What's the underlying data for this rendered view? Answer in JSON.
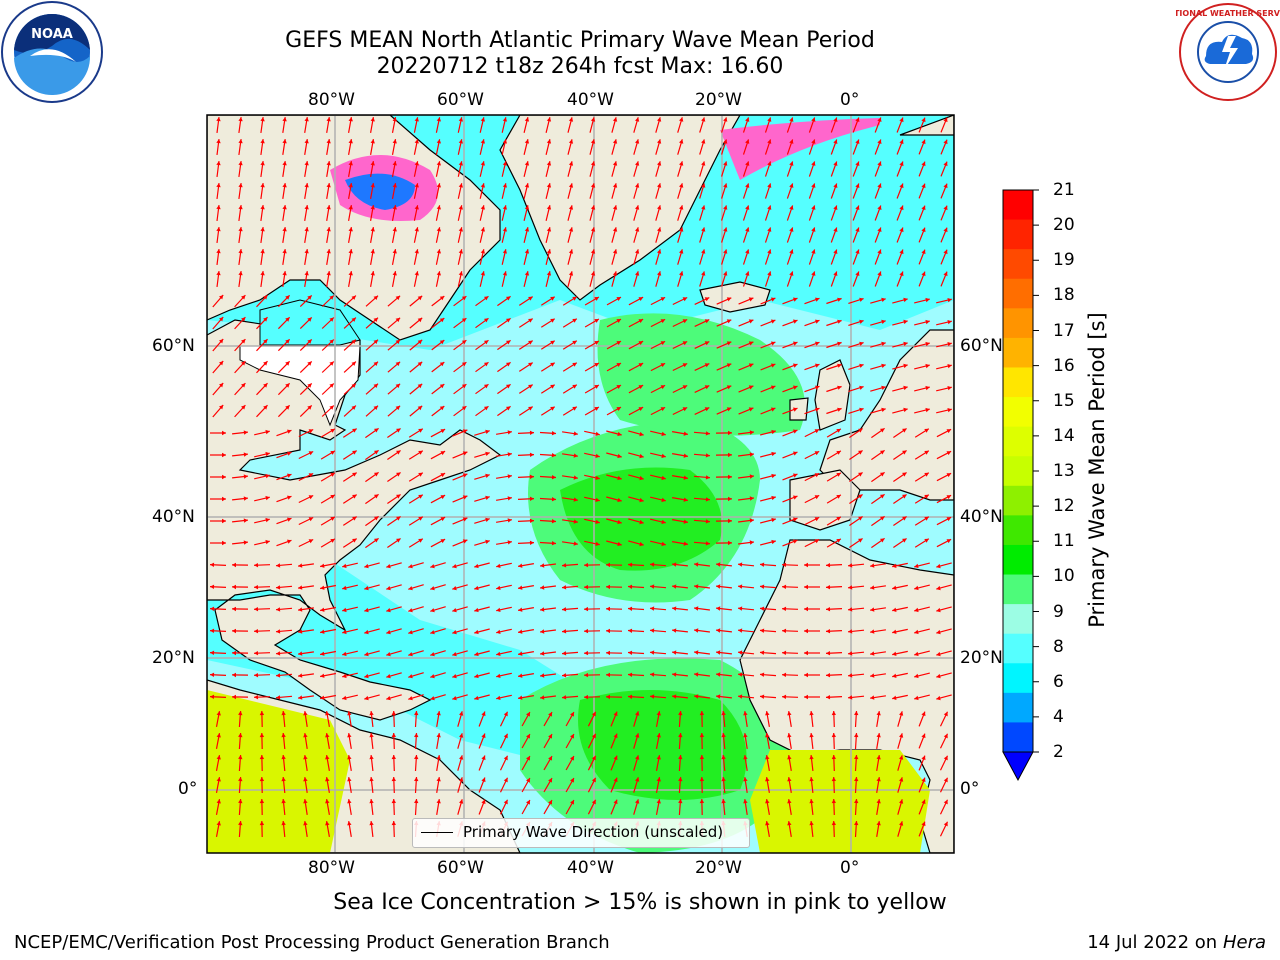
{
  "header": {
    "title_line1": "GEFS MEAN North Atlantic Primary Wave Mean Period",
    "title_line2": "20220712 t18z 264h fcst   Max: 16.60"
  },
  "logos": {
    "left": {
      "name": "NOAA",
      "ring_text": "NATIONAL OCEANIC AND ATMOSPHERIC ADMINISTRATION · U.S. DEPARTMENT OF COMMERCE"
    },
    "right": {
      "name": "NATIONAL WEATHER SERVICE"
    }
  },
  "axes": {
    "top_ticks": [
      "80°W",
      "60°W",
      "40°W",
      "20°W",
      "0°"
    ],
    "bottom_ticks": [
      "80°W",
      "60°W",
      "40°W",
      "20°W",
      "0°"
    ],
    "left_ticks": [
      "60°N",
      "40°N",
      "20°N",
      "0°"
    ],
    "right_ticks": [
      "60°N",
      "40°N",
      "20°N",
      "0°"
    ]
  },
  "legend": {
    "label": "Primary Wave Direction (unscaled)"
  },
  "colorbar": {
    "title": "Primary Wave Mean Period [s]",
    "ticks": [
      "21",
      "20",
      "19",
      "18",
      "17",
      "16",
      "15",
      "14",
      "13",
      "12",
      "11",
      "10",
      "9",
      "8",
      "6",
      "4",
      "2"
    ],
    "colors": [
      "#ff0000",
      "#ff2400",
      "#ff4a00",
      "#ff6e00",
      "#ff9400",
      "#ffb300",
      "#ffe600",
      "#f2ff00",
      "#ddff00",
      "#c7ff00",
      "#8ef000",
      "#3fe800",
      "#00ec00",
      "#4dfb7a",
      "#9cfde4",
      "#55ffff",
      "#00f5ff",
      "#00a8ff",
      "#0048ff"
    ],
    "extend_color": "#0000ff"
  },
  "map_colors": {
    "land": "#efecdc",
    "ocean_base": "#9ffcff",
    "ocean_cyan": "#55ffff",
    "ocean_green": "#4dfb7a",
    "ocean_green_dark": "#22ee22",
    "tropics_yellow": "#d9f600",
    "ice_pink": "#ff66cc",
    "ice_blue": "#1e78ff",
    "arrow": "#ff0000",
    "grid": "#b0b0b0"
  },
  "caption": "Sea Ice Concentration > 15% is shown in pink to yellow",
  "footer": {
    "left": "NCEP/EMC/Verification Post Processing Product Generation Branch",
    "right_date": "14 Jul 2022 on ",
    "right_host": "Hera"
  }
}
